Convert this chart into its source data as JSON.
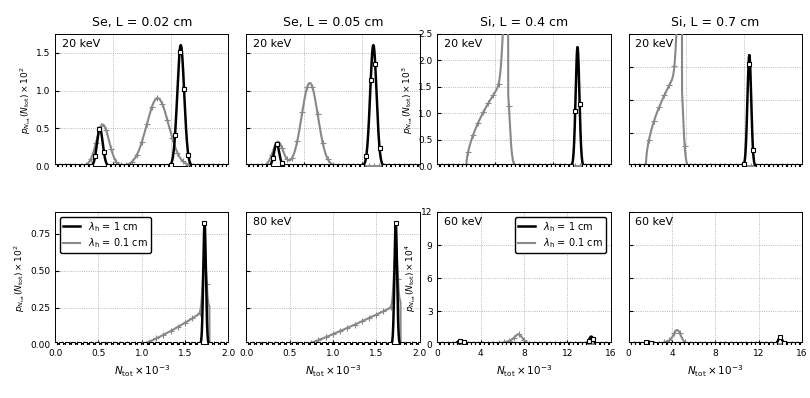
{
  "col_titles": [
    "Se, L = 0.02 cm",
    "Se, L = 0.05 cm",
    "Si, L = 0.4 cm",
    "Si, L = 0.7 cm"
  ],
  "color_black": "#000000",
  "color_gray": "#888888"
}
